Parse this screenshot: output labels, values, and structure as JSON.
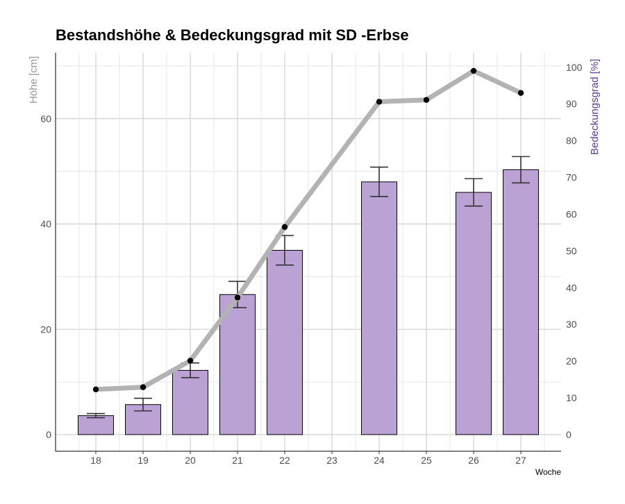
{
  "chart_data": {
    "type": "bar",
    "title": "Bestandshöhe & Bedeckungsgrad mit SD -Erbse",
    "xlabel": "Woche",
    "ylabel_left": "Höhe [cm]",
    "ylabel_right": "Bedeckungsgrad [%]",
    "categories": [
      "18",
      "19",
      "20",
      "21",
      "22",
      "23",
      "24",
      "25",
      "26",
      "27"
    ],
    "ylim_left": [
      -3,
      73
    ],
    "yticks_left": [
      0,
      20,
      40,
      60
    ],
    "ylim_right": [
      -4.3,
      104.3
    ],
    "yticks_right": [
      0,
      10,
      20,
      30,
      40,
      50,
      60,
      70,
      80,
      90,
      100
    ],
    "grid": true,
    "bar_color": "#baa2d4",
    "line_color": "#b3b3b3",
    "series": [
      {
        "type": "bar",
        "axis": "left",
        "values": [
          3.6,
          5.7,
          12.2,
          26.6,
          35.0,
          null,
          48.0,
          null,
          46.0,
          50.3
        ],
        "sd": [
          0.4,
          1.2,
          1.4,
          2.5,
          2.8,
          null,
          2.8,
          null,
          2.6,
          2.5
        ]
      },
      {
        "type": "line",
        "axis": "right",
        "values": [
          12.3,
          12.9,
          20.1,
          37.3,
          56.5,
          null,
          90.6,
          91.1,
          99.0,
          93.0
        ]
      }
    ]
  }
}
